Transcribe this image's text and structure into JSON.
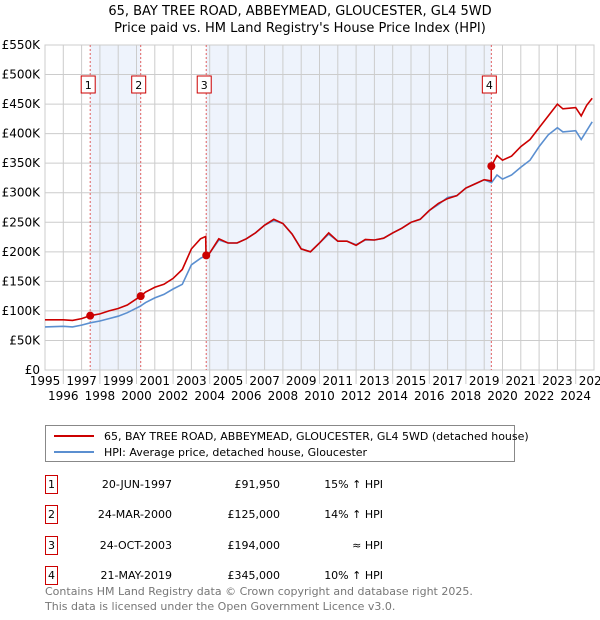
{
  "chart_data": {
    "type": "line",
    "title": "65, BAY TREE ROAD, ABBEYMEAD, GLOUCESTER, GL4 5WD",
    "subtitle": "Price paid vs. HM Land Registry's House Price Index (HPI)",
    "xlim": [
      1995,
      2025
    ],
    "ylim": [
      0,
      550000
    ],
    "x_ticks": [
      "1995",
      "1996",
      "1997",
      "1998",
      "1999",
      "2000",
      "2001",
      "2002",
      "2003",
      "2004",
      "2005",
      "2006",
      "2007",
      "2008",
      "2009",
      "2010",
      "2011",
      "2012",
      "2013",
      "2014",
      "2015",
      "2016",
      "2017",
      "2018",
      "2019",
      "2020",
      "2021",
      "2022",
      "2023",
      "2024",
      "2025"
    ],
    "y_ticks": [
      {
        "v": 0,
        "label": "£0"
      },
      {
        "v": 50000,
        "label": "£50K"
      },
      {
        "v": 100000,
        "label": "£100K"
      },
      {
        "v": 150000,
        "label": "£150K"
      },
      {
        "v": 200000,
        "label": "£200K"
      },
      {
        "v": 250000,
        "label": "£250K"
      },
      {
        "v": 300000,
        "label": "£300K"
      },
      {
        "v": 350000,
        "label": "£350K"
      },
      {
        "v": 400000,
        "label": "£400K"
      },
      {
        "v": 450000,
        "label": "£450K"
      },
      {
        "v": 500000,
        "label": "£500K"
      },
      {
        "v": 550000,
        "label": "£550K"
      }
    ],
    "grid": true,
    "series": [
      {
        "name": "65, BAY TREE ROAD, ABBEYMEAD, GLOUCESTER, GL4 5WD (detached house)",
        "color": "#cc0000",
        "points": [
          [
            1995,
            85000
          ],
          [
            1996,
            85000
          ],
          [
            1996.5,
            84000
          ],
          [
            1997,
            87000
          ],
          [
            1997.47,
            91950
          ],
          [
            1998,
            95000
          ],
          [
            1998.5,
            100000
          ],
          [
            1999,
            104000
          ],
          [
            1999.5,
            110000
          ],
          [
            2000.23,
            125000
          ],
          [
            2000.5,
            132000
          ],
          [
            2001,
            140000
          ],
          [
            2001.5,
            145000
          ],
          [
            2002,
            155000
          ],
          [
            2002.5,
            170000
          ],
          [
            2003,
            205000
          ],
          [
            2003.5,
            222000
          ],
          [
            2003.78,
            226000
          ],
          [
            2003.8,
            194000
          ],
          [
            2004,
            198000
          ],
          [
            2004.5,
            222000
          ],
          [
            2005,
            215000
          ],
          [
            2005.5,
            215000
          ],
          [
            2006,
            222000
          ],
          [
            2006.5,
            232000
          ],
          [
            2007,
            245000
          ],
          [
            2007.5,
            255000
          ],
          [
            2008,
            248000
          ],
          [
            2008.5,
            230000
          ],
          [
            2009,
            205000
          ],
          [
            2009.5,
            200000
          ],
          [
            2010,
            215000
          ],
          [
            2010.5,
            232000
          ],
          [
            2011,
            218000
          ],
          [
            2011.5,
            218000
          ],
          [
            2012,
            211000
          ],
          [
            2012.5,
            221000
          ],
          [
            2013,
            220000
          ],
          [
            2013.5,
            223000
          ],
          [
            2014,
            232000
          ],
          [
            2014.5,
            240000
          ],
          [
            2015,
            250000
          ],
          [
            2015.5,
            255000
          ],
          [
            2016,
            270000
          ],
          [
            2016.5,
            282000
          ],
          [
            2017,
            290000
          ],
          [
            2017.5,
            295000
          ],
          [
            2018,
            308000
          ],
          [
            2018.5,
            315000
          ],
          [
            2019,
            322000
          ],
          [
            2019.38,
            320000
          ],
          [
            2019.39,
            345000
          ],
          [
            2019.7,
            363000
          ],
          [
            2020,
            355000
          ],
          [
            2020.5,
            362000
          ],
          [
            2021,
            378000
          ],
          [
            2021.5,
            390000
          ],
          [
            2022,
            410000
          ],
          [
            2022.5,
            430000
          ],
          [
            2023,
            450000
          ],
          [
            2023.3,
            442000
          ],
          [
            2024,
            444000
          ],
          [
            2024.3,
            430000
          ],
          [
            2024.6,
            448000
          ],
          [
            2024.9,
            460000
          ]
        ]
      },
      {
        "name": "HPI: Average price, detached house, Gloucester",
        "color": "#5b8fd0",
        "points": [
          [
            1995,
            73000
          ],
          [
            1996,
            74000
          ],
          [
            1996.5,
            73000
          ],
          [
            1997,
            76000
          ],
          [
            1997.5,
            80000
          ],
          [
            1998,
            83000
          ],
          [
            1998.5,
            87000
          ],
          [
            1999,
            91000
          ],
          [
            1999.5,
            97000
          ],
          [
            2000.2,
            108000
          ],
          [
            2000.5,
            114000
          ],
          [
            2001,
            122000
          ],
          [
            2001.5,
            128000
          ],
          [
            2002,
            137000
          ],
          [
            2002.5,
            145000
          ],
          [
            2003,
            178000
          ],
          [
            2003.5,
            189000
          ],
          [
            2003.8,
            194000
          ],
          [
            2004,
            198000
          ],
          [
            2004.5,
            220000
          ],
          [
            2005,
            215000
          ],
          [
            2005.5,
            215000
          ],
          [
            2006,
            222000
          ],
          [
            2006.5,
            232000
          ],
          [
            2007,
            245000
          ],
          [
            2007.5,
            253000
          ],
          [
            2008,
            248000
          ],
          [
            2008.5,
            230000
          ],
          [
            2009,
            205000
          ],
          [
            2009.5,
            200000
          ],
          [
            2010,
            215000
          ],
          [
            2010.5,
            230000
          ],
          [
            2011,
            218000
          ],
          [
            2011.5,
            218000
          ],
          [
            2012,
            212000
          ],
          [
            2012.5,
            220000
          ],
          [
            2013,
            220000
          ],
          [
            2013.5,
            223000
          ],
          [
            2014,
            232000
          ],
          [
            2014.5,
            240000
          ],
          [
            2015,
            250000
          ],
          [
            2015.5,
            255000
          ],
          [
            2016,
            270000
          ],
          [
            2016.5,
            280000
          ],
          [
            2017,
            292000
          ],
          [
            2017.5,
            295000
          ],
          [
            2018,
            308000
          ],
          [
            2018.5,
            315000
          ],
          [
            2019,
            322000
          ],
          [
            2019.4,
            317000
          ],
          [
            2019.7,
            330000
          ],
          [
            2020,
            323000
          ],
          [
            2020.5,
            330000
          ],
          [
            2021,
            343000
          ],
          [
            2021.5,
            355000
          ],
          [
            2022,
            378000
          ],
          [
            2022.5,
            398000
          ],
          [
            2023,
            410000
          ],
          [
            2023.3,
            403000
          ],
          [
            2024,
            405000
          ],
          [
            2024.3,
            390000
          ],
          [
            2024.6,
            405000
          ],
          [
            2024.9,
            420000
          ]
        ]
      }
    ],
    "sales": [
      {
        "n": "1",
        "x": 1997.47,
        "y": 91950
      },
      {
        "n": "2",
        "x": 2000.23,
        "y": 125000
      },
      {
        "n": "3",
        "x": 2003.81,
        "y": 194000
      },
      {
        "n": "4",
        "x": 2019.39,
        "y": 345000
      }
    ],
    "shaded": [
      [
        1997.47,
        2000.23
      ],
      [
        2003.81,
        2019.39
      ]
    ]
  },
  "legend": {
    "property": "65, BAY TREE ROAD, ABBEYMEAD, GLOUCESTER, GL4 5WD (detached house)",
    "hpi": "HPI: Average price, detached house, Gloucester"
  },
  "table": [
    {
      "n": "1",
      "date": "20-JUN-1997",
      "price": "£91,950",
      "hpi": "15% ↑ HPI"
    },
    {
      "n": "2",
      "date": "24-MAR-2000",
      "price": "£125,000",
      "hpi": "14% ↑ HPI"
    },
    {
      "n": "3",
      "date": "24-OCT-2003",
      "price": "£194,000",
      "hpi": "≈ HPI"
    },
    {
      "n": "4",
      "date": "21-MAY-2019",
      "price": "£345,000",
      "hpi": "10% ↑ HPI"
    }
  ],
  "footer": {
    "line1": "Contains HM Land Registry data © Crown copyright and database right 2025.",
    "line2": "This data is licensed under the Open Government Licence v3.0."
  }
}
